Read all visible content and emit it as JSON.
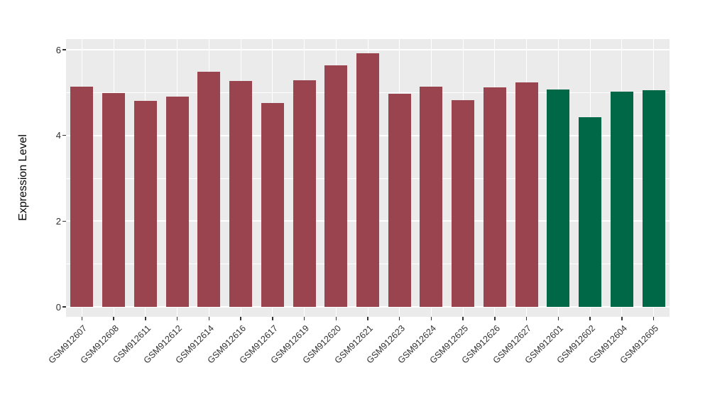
{
  "chart_data": {
    "type": "bar",
    "title": "",
    "xlabel": "",
    "ylabel": "Expression Level",
    "ylim": [
      0,
      6.25
    ],
    "yticks": [
      0,
      2,
      4,
      6
    ],
    "yticks_minor": [
      1,
      3,
      5
    ],
    "grid": true,
    "legend_position": "none",
    "panel_background": "#EBEBEB",
    "grid_color": "#FFFFFF",
    "tick_color": "#333333",
    "categories": [
      "GSM912607",
      "GSM912608",
      "GSM912611",
      "GSM912612",
      "GSM912614",
      "GSM912616",
      "GSM912617",
      "GSM912619",
      "GSM912620",
      "GSM912621",
      "GSM912623",
      "GSM912624",
      "GSM912625",
      "GSM912626",
      "GSM912627",
      "GSM912601",
      "GSM912602",
      "GSM912604",
      "GSM912605"
    ],
    "values": [
      5.14,
      4.99,
      4.81,
      4.91,
      5.49,
      5.27,
      4.76,
      5.29,
      5.64,
      5.92,
      4.98,
      5.14,
      4.83,
      5.12,
      5.23,
      5.07,
      4.43,
      5.03,
      5.06
    ],
    "bar_colors": [
      "#9A4450",
      "#9A4450",
      "#9A4450",
      "#9A4450",
      "#9A4450",
      "#9A4450",
      "#9A4450",
      "#9A4450",
      "#9A4450",
      "#9A4450",
      "#9A4450",
      "#9A4450",
      "#9A4450",
      "#9A4450",
      "#9A4450",
      "#006747",
      "#006747",
      "#006747",
      "#006747"
    ],
    "group_palette": {
      "group1": "#9A4450",
      "group2": "#006747"
    }
  }
}
